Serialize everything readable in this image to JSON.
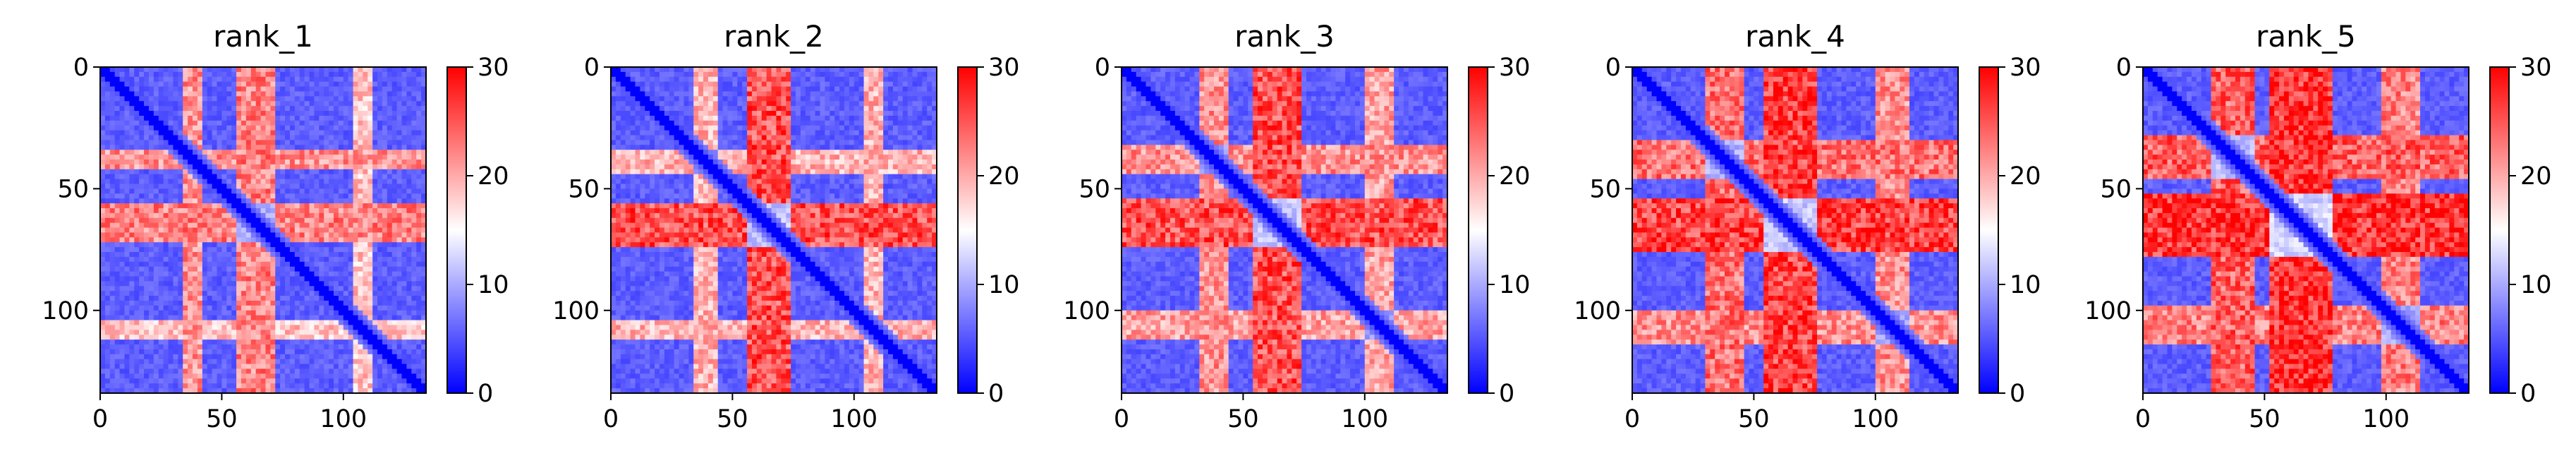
{
  "chart_data": [
    {
      "type": "heatmap",
      "title": "rank_1",
      "matrix_size": 134,
      "xlim": [
        0,
        134
      ],
      "ylim": [
        134,
        0
      ],
      "xticks": [
        0,
        50,
        100
      ],
      "yticks": [
        0,
        50,
        100
      ],
      "colorbar": {
        "min": 0,
        "max": 30,
        "ticks": [
          0,
          10,
          20,
          30
        ]
      },
      "colormap": "bwr",
      "bands": [
        {
          "y": [
            34,
            42
          ],
          "x": [
            0,
            134
          ],
          "value": 22
        },
        {
          "y": [
            56,
            72
          ],
          "x": [
            0,
            134
          ],
          "value": 23
        },
        {
          "y": [
            104,
            112
          ],
          "x": [
            0,
            134
          ],
          "value": 19
        }
      ]
    },
    {
      "type": "heatmap",
      "title": "rank_2",
      "matrix_size": 134,
      "xlim": [
        0,
        134
      ],
      "ylim": [
        134,
        0
      ],
      "xticks": [
        0,
        50,
        100
      ],
      "yticks": [
        0,
        50,
        100
      ],
      "colorbar": {
        "min": 0,
        "max": 30,
        "ticks": [
          0,
          10,
          20,
          30
        ]
      },
      "colormap": "bwr",
      "bands": [
        {
          "y": [
            34,
            44
          ],
          "x": [
            0,
            134
          ],
          "value": 20
        },
        {
          "y": [
            56,
            74
          ],
          "x": [
            0,
            134
          ],
          "value": 26
        },
        {
          "y": [
            104,
            112
          ],
          "x": [
            0,
            134
          ],
          "value": 20
        }
      ]
    },
    {
      "type": "heatmap",
      "title": "rank_3",
      "matrix_size": 134,
      "xlim": [
        0,
        134
      ],
      "ylim": [
        134,
        0
      ],
      "xticks": [
        0,
        50,
        100
      ],
      "yticks": [
        0,
        50,
        100
      ],
      "colorbar": {
        "min": 0,
        "max": 30,
        "ticks": [
          0,
          10,
          20,
          30
        ]
      },
      "colormap": "bwr",
      "bands": [
        {
          "y": [
            32,
            44
          ],
          "x": [
            0,
            134
          ],
          "value": 22
        },
        {
          "y": [
            54,
            74
          ],
          "x": [
            0,
            134
          ],
          "value": 26
        },
        {
          "y": [
            100,
            112
          ],
          "x": [
            0,
            134
          ],
          "value": 21
        }
      ]
    },
    {
      "type": "heatmap",
      "title": "rank_4",
      "matrix_size": 134,
      "xlim": [
        0,
        134
      ],
      "ylim": [
        134,
        0
      ],
      "xticks": [
        0,
        50,
        100
      ],
      "yticks": [
        0,
        50,
        100
      ],
      "colorbar": {
        "min": 0,
        "max": 30,
        "ticks": [
          0,
          10,
          20,
          30
        ]
      },
      "colormap": "bwr",
      "bands": [
        {
          "y": [
            30,
            46
          ],
          "x": [
            0,
            134
          ],
          "value": 24
        },
        {
          "y": [
            54,
            76
          ],
          "x": [
            0,
            134
          ],
          "value": 27
        },
        {
          "y": [
            100,
            114
          ],
          "x": [
            0,
            134
          ],
          "value": 22
        }
      ]
    },
    {
      "type": "heatmap",
      "title": "rank_5",
      "matrix_size": 134,
      "xlim": [
        0,
        134
      ],
      "ylim": [
        134,
        0
      ],
      "xticks": [
        0,
        50,
        100
      ],
      "yticks": [
        0,
        50,
        100
      ],
      "colorbar": {
        "min": 0,
        "max": 30,
        "ticks": [
          0,
          10,
          20,
          30
        ]
      },
      "colormap": "bwr",
      "bands": [
        {
          "y": [
            28,
            46
          ],
          "x": [
            0,
            134
          ],
          "value": 25
        },
        {
          "y": [
            52,
            78
          ],
          "x": [
            0,
            134
          ],
          "value": 28
        },
        {
          "y": [
            98,
            114
          ],
          "x": [
            0,
            134
          ],
          "value": 23
        }
      ]
    }
  ]
}
